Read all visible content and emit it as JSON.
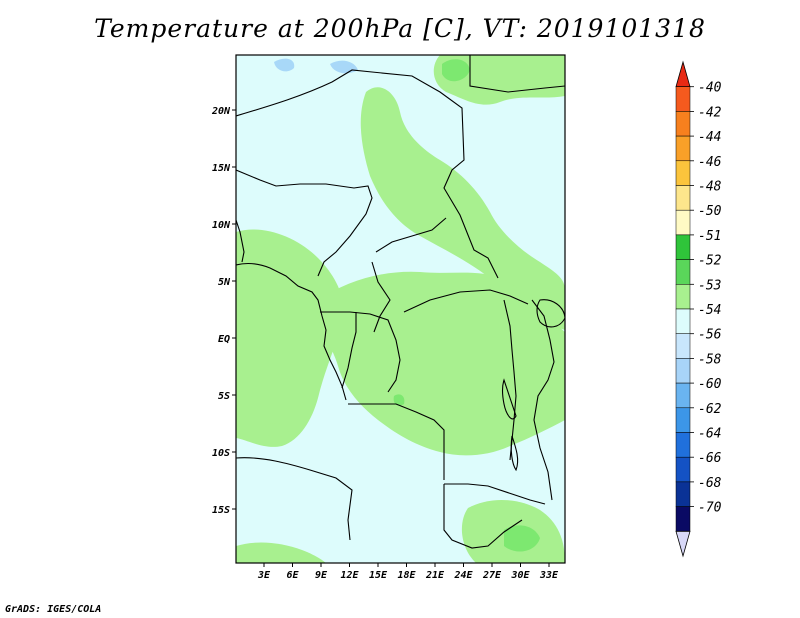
{
  "title": "Temperature at 200hPa [C], VT: 2019101318",
  "credit": "GrADS: IGES/COLA",
  "map": {
    "lat_labels": [
      "20N",
      "15N",
      "10N",
      "5N",
      "EQ",
      "5S",
      "10S",
      "15S"
    ],
    "lon_labels": [
      "3E",
      "6E",
      "9E",
      "12E",
      "15E",
      "18E",
      "21E",
      "24E",
      "27E",
      "30E",
      "33E"
    ],
    "colors": {
      "coast": "#000000",
      "background": "#ddfcfc",
      "field_light": "#a8f08f",
      "field_mid": "#7de870",
      "field_cold": "#a8d8f8"
    }
  },
  "colorbar": {
    "labels": [
      "-40",
      "-42",
      "-44",
      "-46",
      "-48",
      "-50",
      "-51",
      "-52",
      "-53",
      "-54",
      "-56",
      "-58",
      "-60",
      "-62",
      "-64",
      "-66",
      "-68",
      "-70"
    ],
    "colors": [
      "#e82a14",
      "#f55a1e",
      "#f7801e",
      "#f9a028",
      "#fbc43c",
      "#fde68c",
      "#fffac4",
      "#2fc43a",
      "#5ad65a",
      "#a8f08f",
      "#ddfcfc",
      "#c8e6fc",
      "#a8d4f8",
      "#6ab4f0",
      "#3c96e8",
      "#2070dc",
      "#1452c4",
      "#0a3296",
      "#0a0a64",
      "#d8d8f8"
    ]
  }
}
